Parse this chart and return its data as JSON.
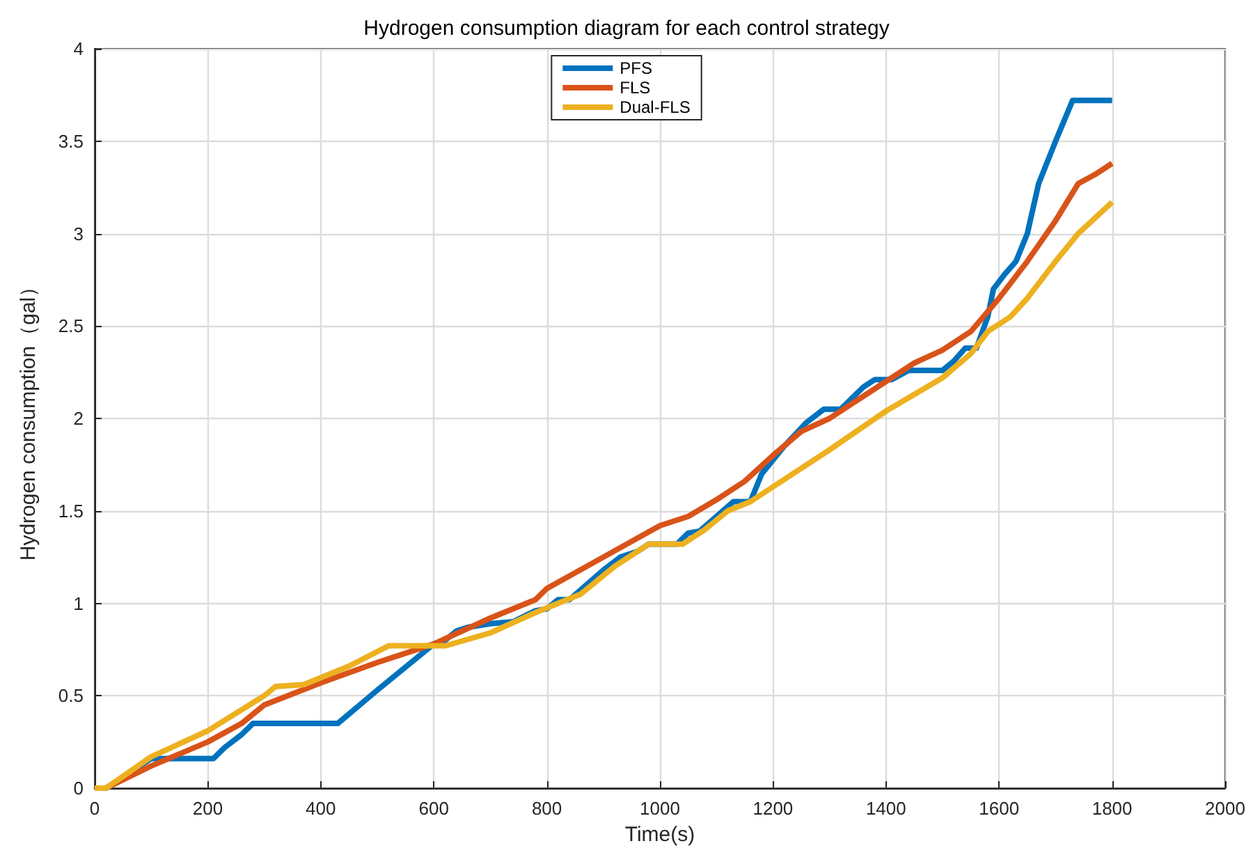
{
  "chart_data": {
    "type": "line",
    "title": "Hydrogen consumption diagram for each control strategy",
    "xlabel": "Time(s)",
    "ylabel": "Hydrogen consumption（gal）",
    "xlim": [
      0,
      2000
    ],
    "xticks": [
      0,
      200,
      400,
      600,
      800,
      1000,
      1200,
      1400,
      1600,
      1800,
      2000
    ],
    "ylim": [
      0,
      4
    ],
    "yticks": [
      0,
      0.5,
      1,
      1.5,
      2,
      2.5,
      3,
      3.5,
      4
    ],
    "grid": true,
    "legend": "top",
    "marker": "none",
    "line_style": "solid",
    "series": [
      {
        "name": "PFS",
        "color": "#0072bd",
        "x": [
          0,
          20,
          60,
          100,
          210,
          230,
          260,
          280,
          430,
          500,
          600,
          620,
          640,
          660,
          700,
          740,
          780,
          800,
          820,
          840,
          870,
          900,
          930,
          960,
          980,
          1030,
          1050,
          1070,
          1100,
          1130,
          1160,
          1180,
          1220,
          1260,
          1290,
          1320,
          1360,
          1380,
          1410,
          1440,
          1500,
          1520,
          1540,
          1560,
          1580,
          1590,
          1610,
          1630,
          1650,
          1670,
          1700,
          1730,
          1800
        ],
        "values": [
          0,
          0,
          0.08,
          0.16,
          0.16,
          0.22,
          0.29,
          0.35,
          0.35,
          0.53,
          0.78,
          0.8,
          0.85,
          0.87,
          0.89,
          0.9,
          0.96,
          0.97,
          1.02,
          1.02,
          1.1,
          1.18,
          1.25,
          1.28,
          1.32,
          1.32,
          1.38,
          1.39,
          1.47,
          1.55,
          1.55,
          1.7,
          1.85,
          1.98,
          2.05,
          2.05,
          2.17,
          2.21,
          2.21,
          2.26,
          2.26,
          2.31,
          2.38,
          2.38,
          2.55,
          2.7,
          2.78,
          2.85,
          3,
          3.27,
          3.5,
          3.72,
          3.72
        ]
      },
      {
        "name": "FLS",
        "color": "#d95319",
        "x": [
          0,
          20,
          100,
          200,
          260,
          300,
          400,
          500,
          600,
          700,
          780,
          800,
          900,
          1000,
          1050,
          1100,
          1150,
          1200,
          1250,
          1300,
          1350,
          1400,
          1450,
          1500,
          1550,
          1600,
          1650,
          1700,
          1740,
          1770,
          1800
        ],
        "values": [
          0,
          0,
          0.12,
          0.25,
          0.35,
          0.45,
          0.57,
          0.68,
          0.78,
          0.92,
          1.02,
          1.08,
          1.25,
          1.42,
          1.47,
          1.56,
          1.66,
          1.8,
          1.93,
          2,
          2.1,
          2.2,
          2.3,
          2.37,
          2.47,
          2.65,
          2.85,
          3.07,
          3.27,
          3.32,
          3.38
        ]
      },
      {
        "name": "Dual-FLS",
        "color": "#edb120",
        "x": [
          0,
          20,
          100,
          200,
          300,
          320,
          370,
          450,
          520,
          620,
          700,
          780,
          860,
          920,
          980,
          1040,
          1080,
          1120,
          1160,
          1200,
          1300,
          1400,
          1450,
          1500,
          1550,
          1580,
          1620,
          1650,
          1700,
          1740,
          1800
        ],
        "values": [
          0,
          0,
          0.17,
          0.31,
          0.5,
          0.55,
          0.56,
          0.66,
          0.77,
          0.77,
          0.84,
          0.95,
          1.05,
          1.2,
          1.32,
          1.32,
          1.4,
          1.5,
          1.55,
          1.63,
          1.83,
          2.04,
          2.13,
          2.22,
          2.35,
          2.47,
          2.55,
          2.65,
          2.85,
          3,
          3.17
        ]
      }
    ]
  }
}
